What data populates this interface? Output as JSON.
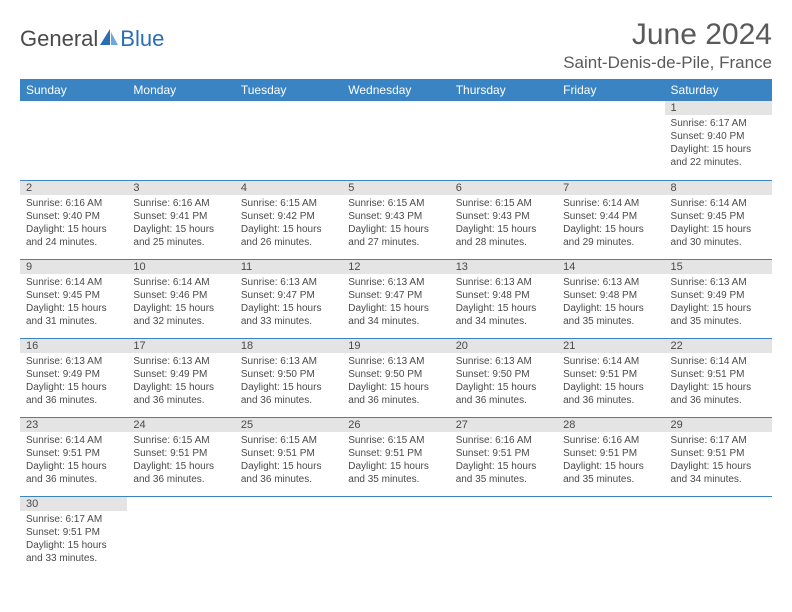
{
  "logo": {
    "general": "General",
    "blue": "Blue"
  },
  "title": {
    "month": "June 2024",
    "location": "Saint-Denis-de-Pile, France"
  },
  "colors": {
    "header_bg": "#3b84c4",
    "header_text": "#ffffff",
    "daynum_bg": "#e4e4e4",
    "text": "#4a4a4a",
    "border": "#3b84c4",
    "logo_general": "#4a4a4a",
    "logo_blue": "#2a6db5",
    "background": "#ffffff"
  },
  "typography": {
    "month_title_fontsize": 30,
    "location_fontsize": 17,
    "weekday_fontsize": 12,
    "daynum_fontsize": 11,
    "content_fontsize": 10,
    "logo_fontsize": 22
  },
  "weekdays": [
    "Sunday",
    "Monday",
    "Tuesday",
    "Wednesday",
    "Thursday",
    "Friday",
    "Saturday"
  ],
  "weeks": [
    [
      null,
      null,
      null,
      null,
      null,
      null,
      {
        "n": "1",
        "sunrise": "6:17 AM",
        "sunset": "9:40 PM",
        "daylight": "15 hours and 22 minutes."
      }
    ],
    [
      {
        "n": "2",
        "sunrise": "6:16 AM",
        "sunset": "9:40 PM",
        "daylight": "15 hours and 24 minutes."
      },
      {
        "n": "3",
        "sunrise": "6:16 AM",
        "sunset": "9:41 PM",
        "daylight": "15 hours and 25 minutes."
      },
      {
        "n": "4",
        "sunrise": "6:15 AM",
        "sunset": "9:42 PM",
        "daylight": "15 hours and 26 minutes."
      },
      {
        "n": "5",
        "sunrise": "6:15 AM",
        "sunset": "9:43 PM",
        "daylight": "15 hours and 27 minutes."
      },
      {
        "n": "6",
        "sunrise": "6:15 AM",
        "sunset": "9:43 PM",
        "daylight": "15 hours and 28 minutes."
      },
      {
        "n": "7",
        "sunrise": "6:14 AM",
        "sunset": "9:44 PM",
        "daylight": "15 hours and 29 minutes."
      },
      {
        "n": "8",
        "sunrise": "6:14 AM",
        "sunset": "9:45 PM",
        "daylight": "15 hours and 30 minutes."
      }
    ],
    [
      {
        "n": "9",
        "sunrise": "6:14 AM",
        "sunset": "9:45 PM",
        "daylight": "15 hours and 31 minutes."
      },
      {
        "n": "10",
        "sunrise": "6:14 AM",
        "sunset": "9:46 PM",
        "daylight": "15 hours and 32 minutes."
      },
      {
        "n": "11",
        "sunrise": "6:13 AM",
        "sunset": "9:47 PM",
        "daylight": "15 hours and 33 minutes."
      },
      {
        "n": "12",
        "sunrise": "6:13 AM",
        "sunset": "9:47 PM",
        "daylight": "15 hours and 34 minutes."
      },
      {
        "n": "13",
        "sunrise": "6:13 AM",
        "sunset": "9:48 PM",
        "daylight": "15 hours and 34 minutes."
      },
      {
        "n": "14",
        "sunrise": "6:13 AM",
        "sunset": "9:48 PM",
        "daylight": "15 hours and 35 minutes."
      },
      {
        "n": "15",
        "sunrise": "6:13 AM",
        "sunset": "9:49 PM",
        "daylight": "15 hours and 35 minutes."
      }
    ],
    [
      {
        "n": "16",
        "sunrise": "6:13 AM",
        "sunset": "9:49 PM",
        "daylight": "15 hours and 36 minutes."
      },
      {
        "n": "17",
        "sunrise": "6:13 AM",
        "sunset": "9:49 PM",
        "daylight": "15 hours and 36 minutes."
      },
      {
        "n": "18",
        "sunrise": "6:13 AM",
        "sunset": "9:50 PM",
        "daylight": "15 hours and 36 minutes."
      },
      {
        "n": "19",
        "sunrise": "6:13 AM",
        "sunset": "9:50 PM",
        "daylight": "15 hours and 36 minutes."
      },
      {
        "n": "20",
        "sunrise": "6:13 AM",
        "sunset": "9:50 PM",
        "daylight": "15 hours and 36 minutes."
      },
      {
        "n": "21",
        "sunrise": "6:14 AM",
        "sunset": "9:51 PM",
        "daylight": "15 hours and 36 minutes."
      },
      {
        "n": "22",
        "sunrise": "6:14 AM",
        "sunset": "9:51 PM",
        "daylight": "15 hours and 36 minutes."
      }
    ],
    [
      {
        "n": "23",
        "sunrise": "6:14 AM",
        "sunset": "9:51 PM",
        "daylight": "15 hours and 36 minutes."
      },
      {
        "n": "24",
        "sunrise": "6:15 AM",
        "sunset": "9:51 PM",
        "daylight": "15 hours and 36 minutes."
      },
      {
        "n": "25",
        "sunrise": "6:15 AM",
        "sunset": "9:51 PM",
        "daylight": "15 hours and 36 minutes."
      },
      {
        "n": "26",
        "sunrise": "6:15 AM",
        "sunset": "9:51 PM",
        "daylight": "15 hours and 35 minutes."
      },
      {
        "n": "27",
        "sunrise": "6:16 AM",
        "sunset": "9:51 PM",
        "daylight": "15 hours and 35 minutes."
      },
      {
        "n": "28",
        "sunrise": "6:16 AM",
        "sunset": "9:51 PM",
        "daylight": "15 hours and 35 minutes."
      },
      {
        "n": "29",
        "sunrise": "6:17 AM",
        "sunset": "9:51 PM",
        "daylight": "15 hours and 34 minutes."
      }
    ],
    [
      {
        "n": "30",
        "sunrise": "6:17 AM",
        "sunset": "9:51 PM",
        "daylight": "15 hours and 33 minutes."
      },
      null,
      null,
      null,
      null,
      null,
      null
    ]
  ],
  "labels": {
    "sunrise_prefix": "Sunrise: ",
    "sunset_prefix": "Sunset: ",
    "daylight_prefix": "Daylight: "
  }
}
